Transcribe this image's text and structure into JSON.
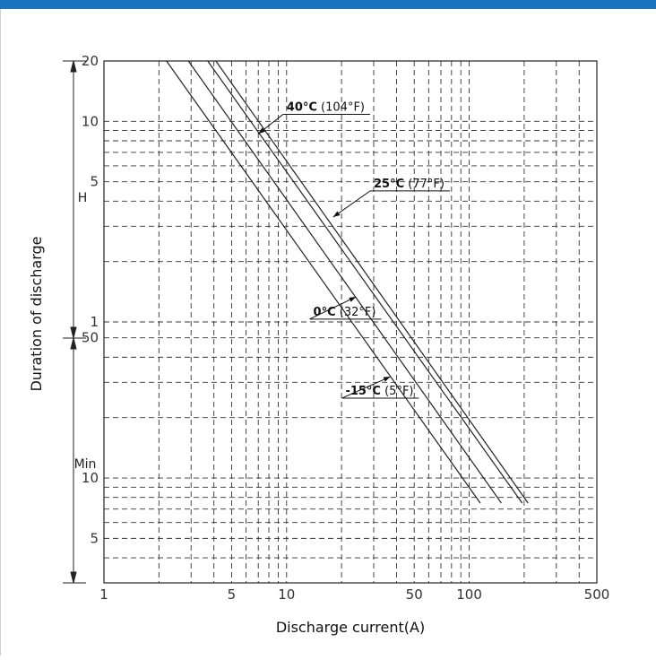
{
  "header": {
    "accent_color": "#1a73bd"
  },
  "chart_data": {
    "type": "line",
    "title": "",
    "xlabel": "Discharge current(A)",
    "ylabel": "Duration of discharge",
    "x_scale": "log",
    "xlim": [
      1,
      500
    ],
    "x_ticks": [
      1,
      5,
      10,
      50,
      100,
      500
    ],
    "x_tick_labels": [
      "1",
      "5",
      "10",
      "50",
      "100",
      "500"
    ],
    "y_scale": "log",
    "y_unit_minutes": true,
    "ylim_minutes": [
      3,
      1200
    ],
    "y_ticks": [
      {
        "label": "20",
        "minutes": 1200,
        "unit": "H"
      },
      {
        "label": "10",
        "minutes": 600,
        "unit": "H"
      },
      {
        "label": "5",
        "minutes": 300,
        "unit": "H"
      },
      {
        "label": "1",
        "minutes": 60,
        "unit": "H"
      },
      {
        "label": "50",
        "minutes": 50,
        "unit": "Min"
      },
      {
        "label": "10",
        "minutes": 10,
        "unit": "Min"
      },
      {
        "label": "5",
        "minutes": 5,
        "unit": "Min"
      }
    ],
    "y_unit_labels": {
      "hours": "H",
      "minutes": "Min"
    },
    "grid": true,
    "line_color": "#222222",
    "series": [
      {
        "name_bold": "40°C",
        "name_rest": " (104°F)",
        "points": [
          [
            4.1,
            1200
          ],
          [
            210,
            7.5
          ]
        ],
        "label_anchor": [
          7.0,
          520
        ],
        "label_at": [
          10,
          650
        ]
      },
      {
        "name_bold": "25°C",
        "name_rest": " (77°F)",
        "points": [
          [
            3.7,
            1200
          ],
          [
            195,
            7.5
          ]
        ],
        "label_anchor": [
          18,
          200
        ],
        "label_at": [
          30,
          270
        ]
      },
      {
        "name_bold": "0°C",
        "name_rest": " (32°F)",
        "points": [
          [
            2.9,
            1200
          ],
          [
            150,
            7.5
          ]
        ],
        "label_anchor": [
          24,
          80
        ],
        "label_at": [
          14,
          62
        ]
      },
      {
        "name_bold": "-15°C",
        "name_rest": " (5°F)",
        "points": [
          [
            2.2,
            1200
          ],
          [
            115,
            7.5
          ]
        ],
        "label_anchor": [
          37,
          32
        ],
        "label_at": [
          21,
          25
        ]
      }
    ]
  }
}
